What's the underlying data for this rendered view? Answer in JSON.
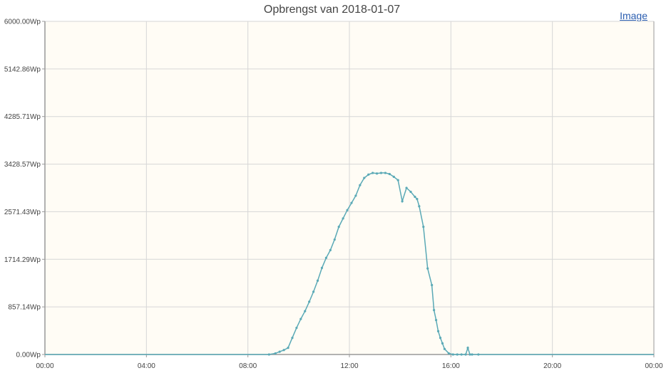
{
  "header": {
    "title": "Opbrengst van 2018-01-07",
    "image_link": "Image"
  },
  "colors": {
    "plot_background": "#fffcf5",
    "grid": "#d6d6d6",
    "line": "#5aa9b6",
    "axis": "#999999"
  },
  "chart_data": {
    "type": "line",
    "title": "Opbrengst van 2018-01-07",
    "xlabel": "",
    "ylabel": "",
    "xlim": [
      "00:00",
      "24:00"
    ],
    "ylim": [
      0,
      6000
    ],
    "grid": true,
    "x_ticks": [
      "00:00",
      "04:00",
      "08:00",
      "12:00",
      "16:00",
      "20:00",
      "00:00"
    ],
    "y_ticks": [
      "0.00Wp",
      "857.14Wp",
      "1714.29Wp",
      "2571.43Wp",
      "3428.57Wp",
      "4285.71Wp",
      "5142.86Wp",
      "6000.00Wp"
    ],
    "series": [
      {
        "name": "",
        "x": [
          "00:00",
          "08:50",
          "09:05",
          "09:15",
          "09:25",
          "09:35",
          "09:45",
          "09:55",
          "10:05",
          "10:15",
          "10:25",
          "10:35",
          "10:45",
          "10:55",
          "11:05",
          "11:15",
          "11:25",
          "11:35",
          "11:45",
          "11:55",
          "12:05",
          "12:15",
          "12:25",
          "12:35",
          "12:45",
          "12:55",
          "13:05",
          "13:15",
          "13:25",
          "13:35",
          "13:45",
          "13:55",
          "14:05",
          "14:15",
          "14:25",
          "14:35",
          "14:40",
          "14:45",
          "14:55",
          "15:05",
          "15:15",
          "15:20",
          "15:25",
          "15:30",
          "15:35",
          "15:40",
          "15:45",
          "15:55",
          "16:05",
          "16:15",
          "16:25",
          "16:35",
          "16:40",
          "16:45",
          "16:50",
          "17:05",
          "24:00"
        ],
        "values": [
          0,
          0,
          20,
          50,
          80,
          120,
          300,
          480,
          640,
          780,
          950,
          1130,
          1330,
          1560,
          1740,
          1880,
          2070,
          2300,
          2450,
          2600,
          2730,
          2860,
          3050,
          3180,
          3240,
          3270,
          3260,
          3270,
          3270,
          3250,
          3200,
          3140,
          2760,
          3000,
          2930,
          2840,
          2800,
          2670,
          2300,
          1550,
          1250,
          800,
          620,
          420,
          300,
          200,
          100,
          20,
          0,
          0,
          0,
          0,
          120,
          0,
          0,
          0,
          0
        ]
      }
    ]
  }
}
